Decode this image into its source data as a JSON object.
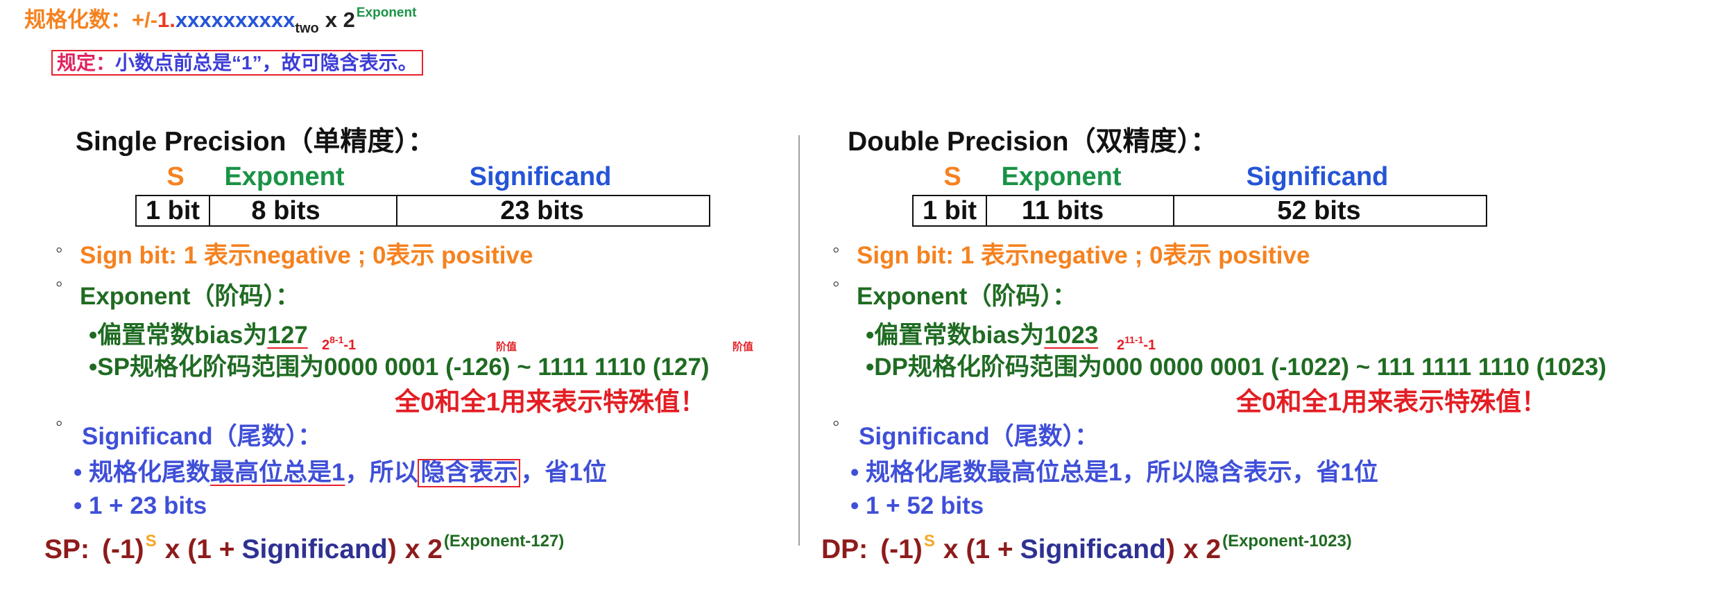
{
  "colors": {
    "orange": "#f5821f",
    "red": "#e31e24",
    "dark-red": "#8e1b1b",
    "field-green": "#1a9347",
    "text-green": "#1f6b22",
    "field-blue": "#2554d6",
    "text-blue": "#3f4fd8",
    "navy": "#2e3192",
    "rule-label": "#e0245e",
    "rule-text": "#3d3dd6",
    "sign-sup": "#f5a623"
  },
  "header": {
    "label": "规格化数：",
    "sign": "+/-",
    "lead": "1.",
    "fraction": "xxxxxxxxxx",
    "base": "two",
    "times": "x 2",
    "exponent": "Exponent"
  },
  "rule": {
    "label": "规定：",
    "text": "小数点前总是“1”，故可隐含表示。"
  },
  "panels": {
    "single": {
      "title": "Single Precision（单精度）：",
      "fields": {
        "sign": "S",
        "exponent": "Exponent",
        "significand": "Significand"
      },
      "bits": {
        "sign": "1 bit",
        "exponent": "8 bits",
        "significand": "23 bits"
      },
      "marker": "◦",
      "sign_bit": "Sign bit: 1 表示negative ; 0表示 positive",
      "exponent_heading": "Exponent（阶码）：",
      "bias_prefix": "•偏置常数bias为",
      "bias_value": "127",
      "bias_formula": {
        "base": "2",
        "power": "8-1",
        "tail": "-1"
      },
      "notes": [
        "阶值",
        "阶值"
      ],
      "range": "•SP规格化阶码范围为0000 0001 (-126) ~ 1111 1110 (127)",
      "special": "全0和全1用来表示特殊值！",
      "significand_heading": "Significand（尾数）：",
      "significand_bullet": {
        "prefix": "• 规格化尾数",
        "underlined": "最高位总是1",
        "middle": "，所以",
        "boxed": "隐含表示",
        "suffix": "，省1位"
      },
      "significand_bits": "• 1 + 23 bits",
      "formula": {
        "label": "SP:",
        "neg": "(-1)",
        "sign_sup": "S",
        "times": "x (1 +",
        "significand": "Significand",
        "close": ")",
        "base": "x 2",
        "exp_sup": "(Exponent-127)"
      }
    },
    "double": {
      "title": "Double Precision（双精度）：",
      "fields": {
        "sign": "S",
        "exponent": "Exponent",
        "significand": "Significand"
      },
      "bits": {
        "sign": "1 bit",
        "exponent": "11 bits",
        "significand": "52 bits"
      },
      "marker": "◦",
      "sign_bit": "Sign bit: 1 表示negative ; 0表示 positive",
      "exponent_heading": "Exponent（阶码）：",
      "bias_prefix": "•偏置常数bias为",
      "bias_value": "1023",
      "bias_formula": {
        "base": "2",
        "power": "11-1",
        "tail": "-1"
      },
      "range": "•DP规格化阶码范围为000 0000 0001 (-1022) ~ 111 1111 1110 (1023)",
      "special": "全0和全1用来表示特殊值！",
      "significand_heading": "Significand（尾数）：",
      "significand_bullet": "• 规格化尾数最高位总是1，所以隐含表示，省1位",
      "significand_bits": "• 1 + 52 bits",
      "formula": {
        "label": "DP:",
        "neg": "(-1)",
        "sign_sup": "S",
        "times": "x (1 +",
        "significand": "Significand",
        "close": ")",
        "base": "x 2",
        "exp_sup": "(Exponent-1023)"
      }
    }
  }
}
